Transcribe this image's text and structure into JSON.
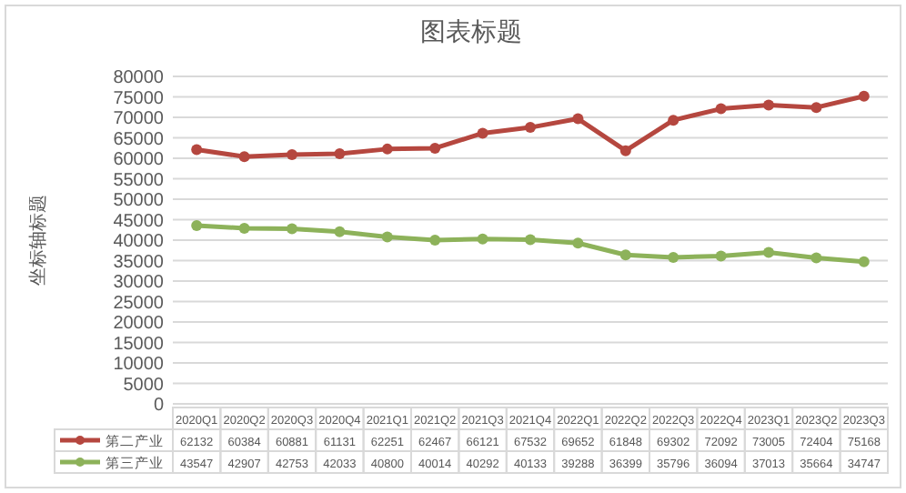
{
  "chart_data": {
    "type": "line",
    "title": "图表标题",
    "ylabel": "坐标轴标题",
    "categories": [
      "2020Q1",
      "2020Q2",
      "2020Q3",
      "2020Q4",
      "2021Q1",
      "2021Q2",
      "2021Q3",
      "2021Q4",
      "2022Q1",
      "2022Q2",
      "2022Q3",
      "2022Q4",
      "2023Q1",
      "2023Q2",
      "2023Q3"
    ],
    "series": [
      {
        "name": "第二产业",
        "color": "#b5473f",
        "values": [
          62132,
          60384,
          60881,
          61131,
          62251,
          62467,
          66121,
          67532,
          69652,
          61848,
          69302,
          72092,
          73005,
          72404,
          75168
        ]
      },
      {
        "name": "第三产业",
        "color": "#8db25a",
        "values": [
          43547,
          42907,
          42753,
          42033,
          40800,
          40014,
          40292,
          40133,
          39288,
          36399,
          35796,
          36094,
          37013,
          35664,
          34747
        ]
      }
    ],
    "ylim": [
      0,
      80000
    ],
    "yticks": [
      0,
      5000,
      10000,
      15000,
      20000,
      25000,
      30000,
      35000,
      40000,
      45000,
      50000,
      55000,
      60000,
      65000,
      70000,
      75000,
      80000
    ],
    "grid": "y",
    "marker": "circle",
    "line_style": "solid",
    "legend": "bottom",
    "data_labels": true
  }
}
